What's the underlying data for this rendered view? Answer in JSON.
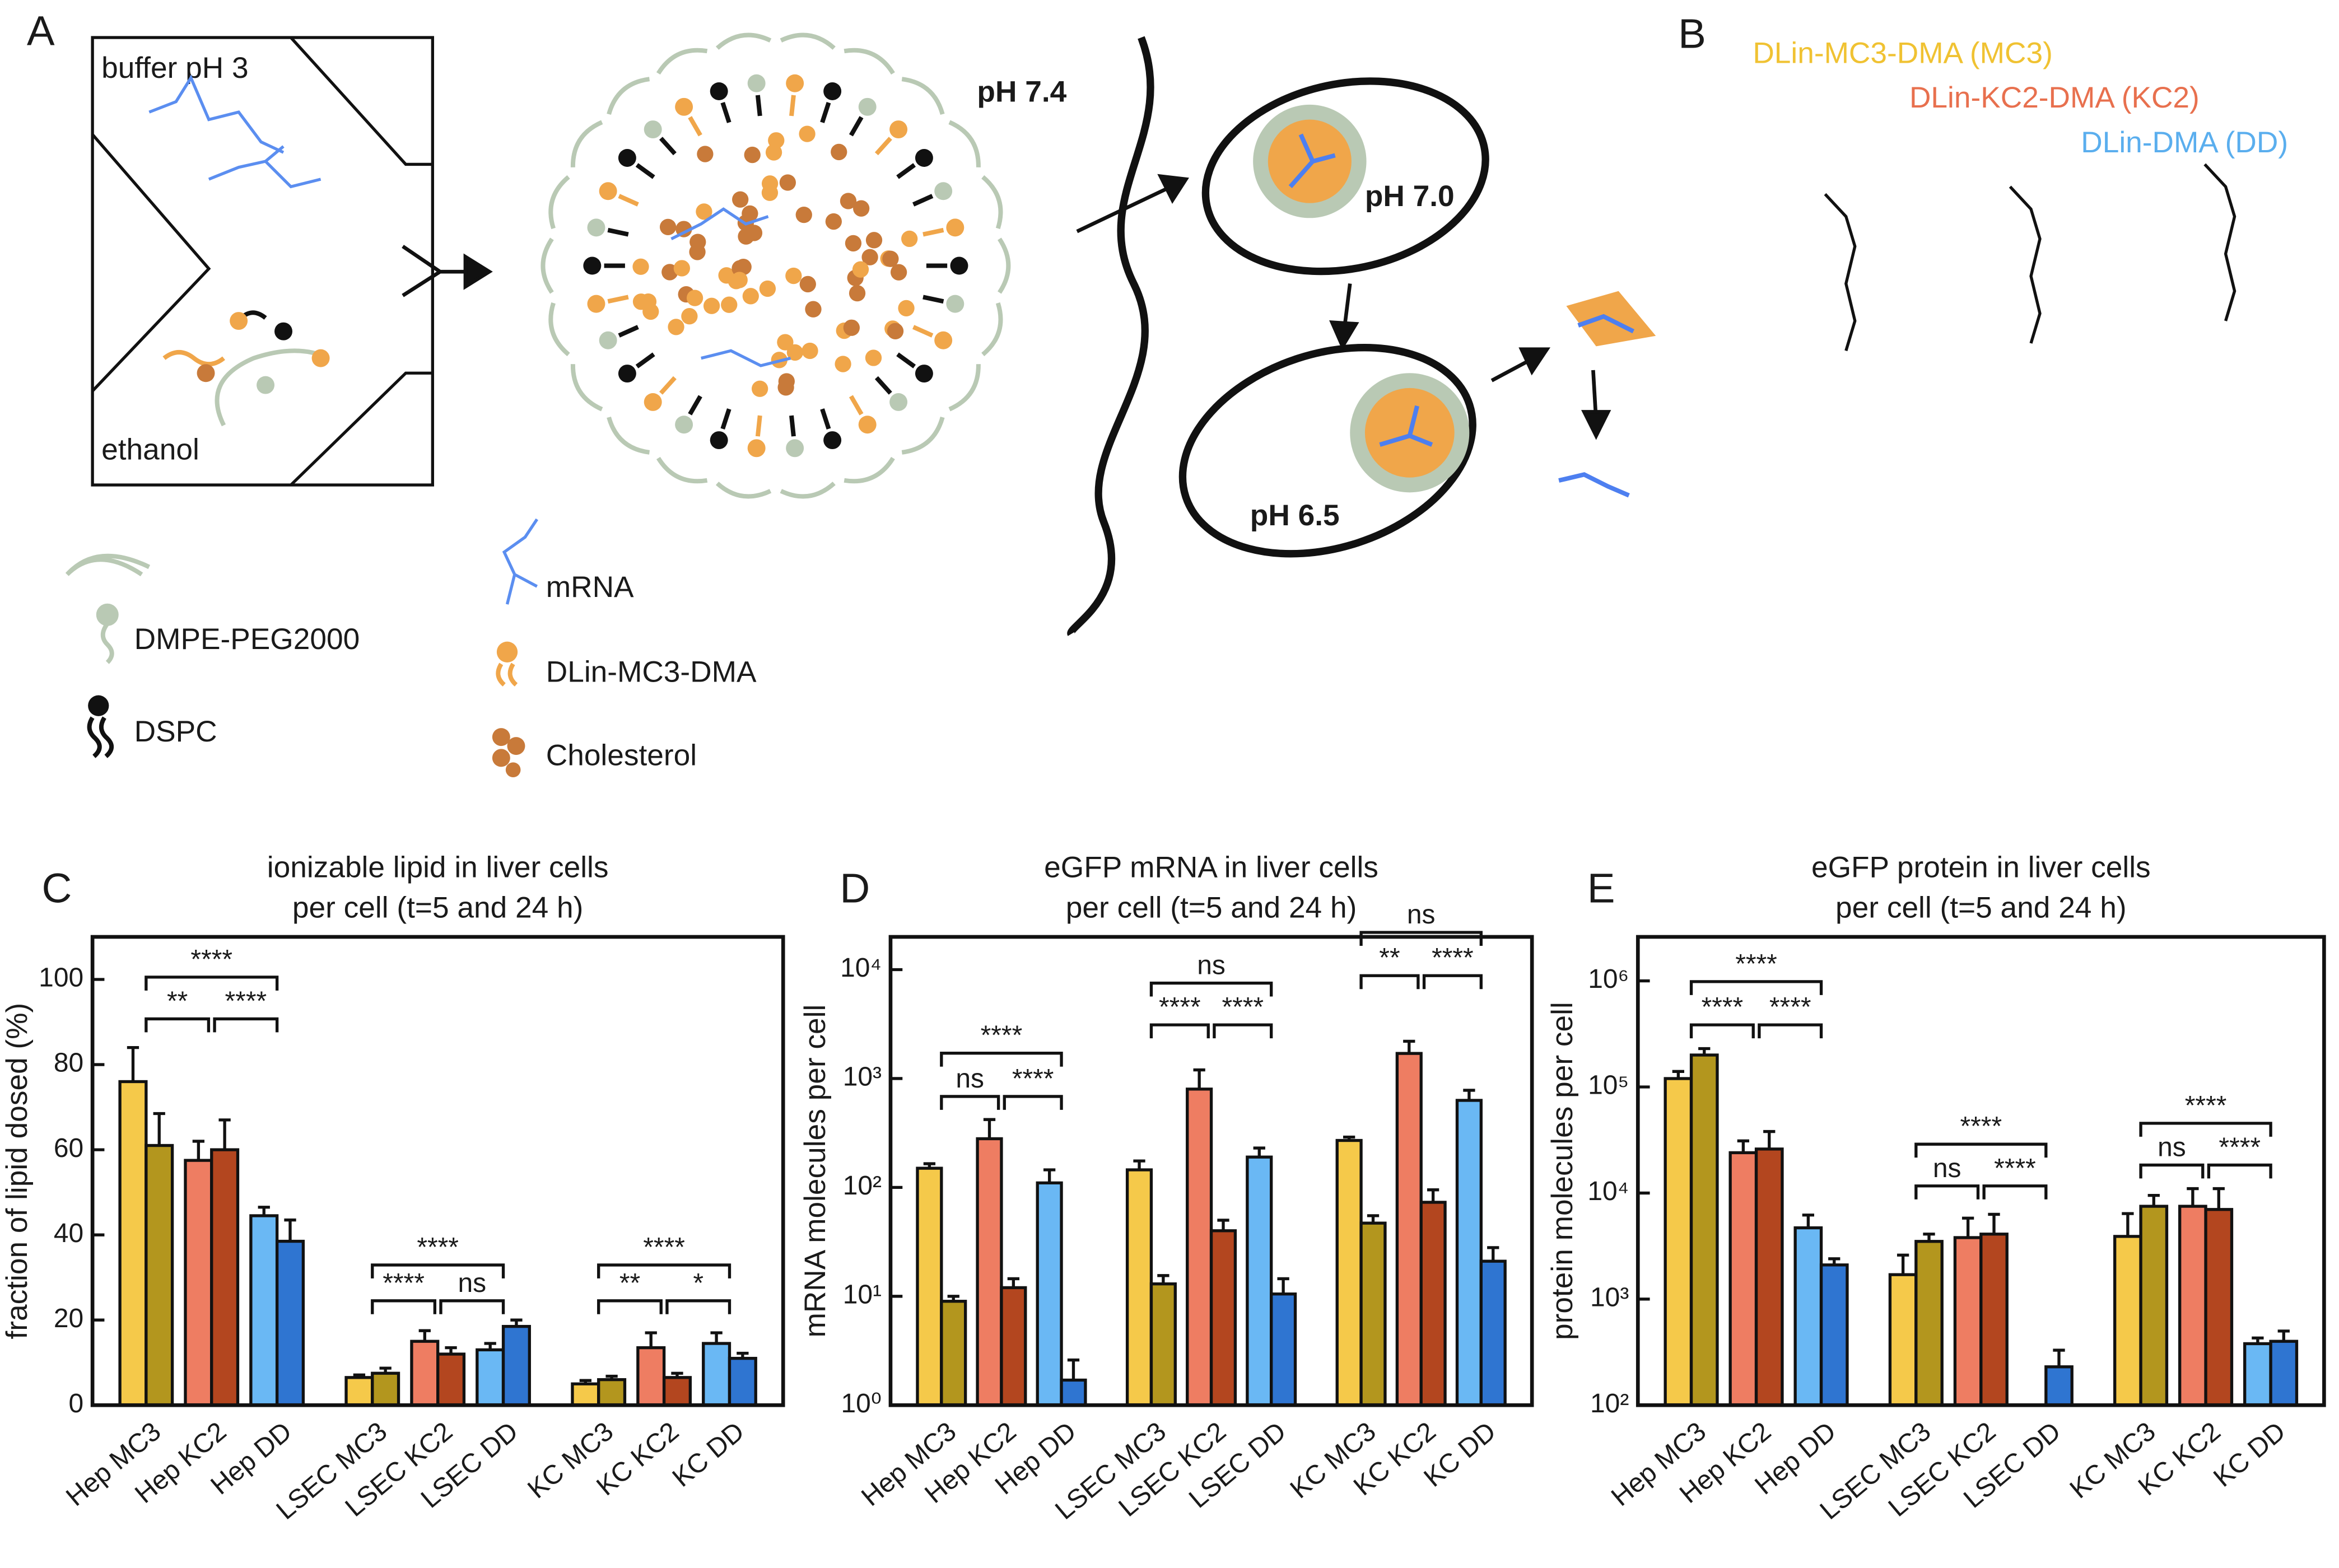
{
  "panels": {
    "A": {
      "letter": "A",
      "buffer": "buffer pH 3",
      "ethanol": "ethanol",
      "ph_outside": "pH 7.4",
      "ph_early": "pH 7.0",
      "ph_late": "pH 6.5",
      "legend": [
        "DMPE-PEG2000",
        "DSPC",
        "mRNA",
        "DLin-MC3-DMA",
        "Cholesterol"
      ]
    },
    "B": {
      "letter": "B",
      "lipids": [
        "DLin-MC3-DMA (MC3)",
        "DLin-KC2-DMA (KC2)",
        "DLin-DMA (DD)"
      ],
      "colors": [
        "#f0c232",
        "#e8704e",
        "#5aaeee"
      ]
    }
  },
  "chart_data": [
    {
      "panel": "C",
      "type": "bar",
      "title": [
        "ionizable lipid in liver cells",
        "per cell (t=5 and 24 h)"
      ],
      "ylabel": "fraction of lipid dosed (%)",
      "categories": [
        "Hep MC3",
        "Hep KC2",
        "Hep DD",
        "LSEC MC3",
        "LSEC KC2",
        "LSEC DD",
        "KC MC3",
        "KC KC2",
        "KC DD"
      ],
      "series": [
        {
          "colors": [
            "#f5c94a",
            "#ee7d62",
            "#6ab8f4",
            "#f5c94a",
            "#ee7d62",
            "#6ab8f4",
            "#f5c94a",
            "#ee7d62",
            "#6ab8f4"
          ],
          "values": [
            76,
            57.5,
            44.5,
            6.5,
            15,
            13,
            5,
            13.5,
            14.5
          ],
          "errors": [
            8,
            4.5,
            2,
            0.6,
            2.5,
            1.5,
            0.8,
            3.5,
            2.5
          ]
        },
        {
          "colors": [
            "#b3961e",
            "#b3461f",
            "#2f75d1",
            "#b3961e",
            "#b3461f",
            "#2f75d1",
            "#b3961e",
            "#b3461f",
            "#2f75d1"
          ],
          "values": [
            61,
            60,
            38.5,
            7.5,
            12,
            18.5,
            6,
            6.5,
            11
          ],
          "errors": [
            7.5,
            7,
            5,
            1.2,
            1.5,
            1.5,
            0.8,
            1,
            1.2
          ]
        }
      ],
      "ylim": [
        0,
        110
      ],
      "yticks": [
        0,
        20,
        40,
        60,
        80,
        100
      ],
      "log": false,
      "annotations": [
        "****",
        "**",
        "****",
        "****",
        "****",
        "ns",
        "****",
        "**",
        "*"
      ]
    },
    {
      "panel": "D",
      "type": "bar",
      "title": [
        "eGFP mRNA in liver cells",
        "per cell (t=5 and 24 h)"
      ],
      "ylabel": "mRNA molecules per cell",
      "categories": [
        "Hep MC3",
        "Hep KC2",
        "Hep DD",
        "LSEC MC3",
        "LSEC KC2",
        "LSEC DD",
        "KC MC3",
        "KC KC2",
        "KC DD"
      ],
      "series": [
        {
          "colors": [
            "#f5c94a",
            "#ee7d62",
            "#6ab8f4",
            "#f5c94a",
            "#ee7d62",
            "#6ab8f4",
            "#f5c94a",
            "#ee7d62",
            "#6ab8f4"
          ],
          "values": [
            150,
            280,
            110,
            145,
            800,
            190,
            270,
            1700,
            630
          ],
          "errors": [
            15,
            140,
            35,
            30,
            400,
            40,
            20,
            500,
            150
          ]
        },
        {
          "colors": [
            "#b3961e",
            "#b3461f",
            "#2f75d1",
            "#b3961e",
            "#b3461f",
            "#2f75d1",
            "#b3961e",
            "#b3461f",
            "#2f75d1"
          ],
          "values": [
            9,
            12,
            1.7,
            13,
            40,
            10.5,
            47,
            73,
            21
          ],
          "errors": [
            1,
            2.5,
            0.9,
            2.5,
            10,
            4,
            8,
            22,
            7
          ]
        }
      ],
      "ylim": [
        1,
        20000
      ],
      "yticks": [
        {
          "value": 1,
          "label": "10⁰"
        },
        {
          "value": 10,
          "label": "10¹"
        },
        {
          "value": 100,
          "label": "10²"
        },
        {
          "value": 1000,
          "label": "10³"
        },
        {
          "value": 10000,
          "label": "10⁴"
        }
      ],
      "log": true,
      "annotations": [
        "****",
        "ns",
        "****",
        "ns",
        "****",
        "****",
        "ns",
        "**",
        "****"
      ]
    },
    {
      "panel": "E",
      "type": "bar",
      "title": [
        "eGFP protein in liver cells",
        "per cell (t=5 and 24 h)"
      ],
      "ylabel": "protein molecules per cell",
      "categories": [
        "Hep MC3",
        "Hep KC2",
        "Hep DD",
        "LSEC MC3",
        "LSEC KC2",
        "LSEC DD",
        "KC MC3",
        "KC KC2",
        "KC DD"
      ],
      "series": [
        {
          "colors": [
            "#f5c94a",
            "#ee7d62",
            "#6ab8f4",
            "#f5c94a",
            "#ee7d62",
            "#6ab8f4",
            "#f5c94a",
            "#ee7d62",
            "#6ab8f4"
          ],
          "values": [
            120000,
            24000,
            4700,
            1700,
            3800,
            null,
            3900,
            7500,
            380
          ],
          "errors": [
            20000,
            7000,
            1500,
            900,
            2000,
            null,
            2500,
            3500,
            50
          ]
        },
        {
          "colors": [
            "#b3961e",
            "#b3461f",
            "#2f75d1",
            "#b3961e",
            "#b3461f",
            "#2f75d1",
            "#b3961e",
            "#b3461f",
            "#2f75d1"
          ],
          "values": [
            200000,
            26000,
            2100,
            3500,
            4100,
            230,
            7500,
            7000,
            400
          ],
          "errors": [
            30000,
            12000,
            300,
            600,
            2200,
            100,
            2000,
            4000,
            100
          ]
        }
      ],
      "ylim": [
        100,
        2600000
      ],
      "yticks": [
        {
          "value": 100,
          "label": "10²"
        },
        {
          "value": 1000,
          "label": "10³"
        },
        {
          "value": 10000,
          "label": "10⁴"
        },
        {
          "value": 100000,
          "label": "10⁵"
        },
        {
          "value": 1000000,
          "label": "10⁶"
        }
      ],
      "log": true,
      "annotations": [
        "****",
        "****",
        "****",
        "****",
        "ns",
        "****",
        "****",
        "ns",
        "****"
      ]
    }
  ]
}
